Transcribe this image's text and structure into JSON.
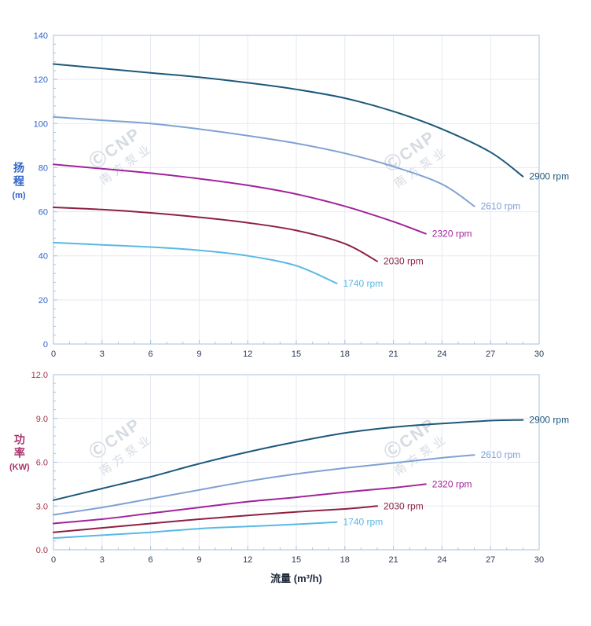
{
  "watermark": {
    "logo": "ⒸCNP",
    "text": "南方泵业"
  },
  "chart_data": [
    {
      "type": "line",
      "title": "",
      "xlabel": "流量 (m³/h)",
      "ylabel": "扬程 (m)",
      "ylabel_main": "扬程",
      "ylabel_unit": "(m)",
      "xlim": [
        0,
        30
      ],
      "ylim": [
        0,
        140
      ],
      "xticks": [
        0,
        3,
        6,
        9,
        12,
        15,
        18,
        21,
        24,
        27,
        30
      ],
      "yticks": [
        0,
        20,
        40,
        60,
        80,
        100,
        120,
        140
      ],
      "ytick_labels": [
        "0",
        "20",
        "40",
        "60",
        "80",
        "100",
        "120",
        "140"
      ],
      "x_minor_step": 1,
      "y_minor_step": 4,
      "grid": true,
      "legend": "end-of-line labels",
      "axis_color": "#a9c2de",
      "grid_color": "#e5e9f0",
      "tick_label_color_y": "#2e64c8",
      "tick_label_color_x": "#2b3a55",
      "series": [
        {
          "name": "2900 rpm",
          "color": "#1d587b",
          "x": [
            0,
            3,
            6,
            9,
            12,
            15,
            18,
            21,
            24,
            27,
            29
          ],
          "y": [
            127,
            125,
            123,
            121,
            118.5,
            115.5,
            111.5,
            105.5,
            97.5,
            87,
            76
          ]
        },
        {
          "name": "2610 rpm",
          "color": "#7fa1d4",
          "x": [
            0,
            3,
            6,
            9,
            12,
            15,
            18,
            21,
            24,
            26
          ],
          "y": [
            103,
            101.5,
            100,
            97.5,
            94.5,
            91,
            86.5,
            80.5,
            72.5,
            62.5
          ]
        },
        {
          "name": "2320 rpm",
          "color": "#a1239b",
          "x": [
            0,
            3,
            6,
            9,
            12,
            15,
            18,
            21,
            23
          ],
          "y": [
            81.5,
            79.5,
            77.5,
            75,
            72,
            68,
            62.5,
            55.5,
            50
          ]
        },
        {
          "name": "2030 rpm",
          "color": "#8e2040",
          "x": [
            0,
            3,
            6,
            9,
            12,
            15,
            18,
            20
          ],
          "y": [
            62,
            61,
            59.5,
            57.5,
            55,
            51.5,
            45.5,
            37.5
          ]
        },
        {
          "name": "1740 rpm",
          "color": "#58b9e4",
          "x": [
            0,
            3,
            6,
            9,
            12,
            15,
            17.5
          ],
          "y": [
            46,
            45,
            44,
            42.5,
            40,
            35.5,
            27.5
          ]
        }
      ]
    },
    {
      "type": "line",
      "title": "",
      "xlabel": "流量 (m³/h)",
      "ylabel": "功率 (KW)",
      "ylabel_main": "功率",
      "ylabel_unit": "(KW)",
      "xlim": [
        0,
        30
      ],
      "ylim": [
        0,
        12
      ],
      "xticks": [
        0,
        3,
        6,
        9,
        12,
        15,
        18,
        21,
        24,
        27,
        30
      ],
      "yticks": [
        0,
        3,
        6,
        9,
        12
      ],
      "ytick_labels": [
        "0.0",
        "3.0",
        "6.0",
        "9.0",
        "12.0"
      ],
      "x_minor_step": 1,
      "y_minor_step": 0.6,
      "grid": true,
      "legend": "end-of-line labels",
      "axis_color": "#a9c2de",
      "grid_color": "#e5e9f0",
      "tick_label_color_y": "#9e3548",
      "tick_label_color_x": "#2b3a55",
      "series": [
        {
          "name": "2900 rpm",
          "color": "#1d587b",
          "x": [
            0,
            3,
            6,
            9,
            12,
            15,
            18,
            21,
            24,
            27,
            29
          ],
          "y": [
            3.4,
            4.2,
            5.0,
            5.9,
            6.7,
            7.4,
            8.0,
            8.4,
            8.65,
            8.85,
            8.9
          ]
        },
        {
          "name": "2610 rpm",
          "color": "#7fa1d4",
          "x": [
            0,
            3,
            6,
            9,
            12,
            15,
            18,
            21,
            24,
            26
          ],
          "y": [
            2.4,
            2.9,
            3.5,
            4.1,
            4.7,
            5.2,
            5.6,
            5.95,
            6.3,
            6.5
          ]
        },
        {
          "name": "2320 rpm",
          "color": "#a1239b",
          "x": [
            0,
            3,
            6,
            9,
            12,
            15,
            18,
            21,
            23
          ],
          "y": [
            1.8,
            2.1,
            2.5,
            2.9,
            3.3,
            3.6,
            3.95,
            4.25,
            4.5
          ]
        },
        {
          "name": "2030 rpm",
          "color": "#8e2040",
          "x": [
            0,
            3,
            6,
            9,
            12,
            15,
            18,
            20
          ],
          "y": [
            1.2,
            1.5,
            1.8,
            2.1,
            2.35,
            2.6,
            2.8,
            3.0
          ]
        },
        {
          "name": "1740 rpm",
          "color": "#58b9e4",
          "x": [
            0,
            3,
            6,
            9,
            12,
            15,
            17.5
          ],
          "y": [
            0.8,
            1.0,
            1.2,
            1.45,
            1.6,
            1.75,
            1.9
          ]
        }
      ]
    }
  ]
}
